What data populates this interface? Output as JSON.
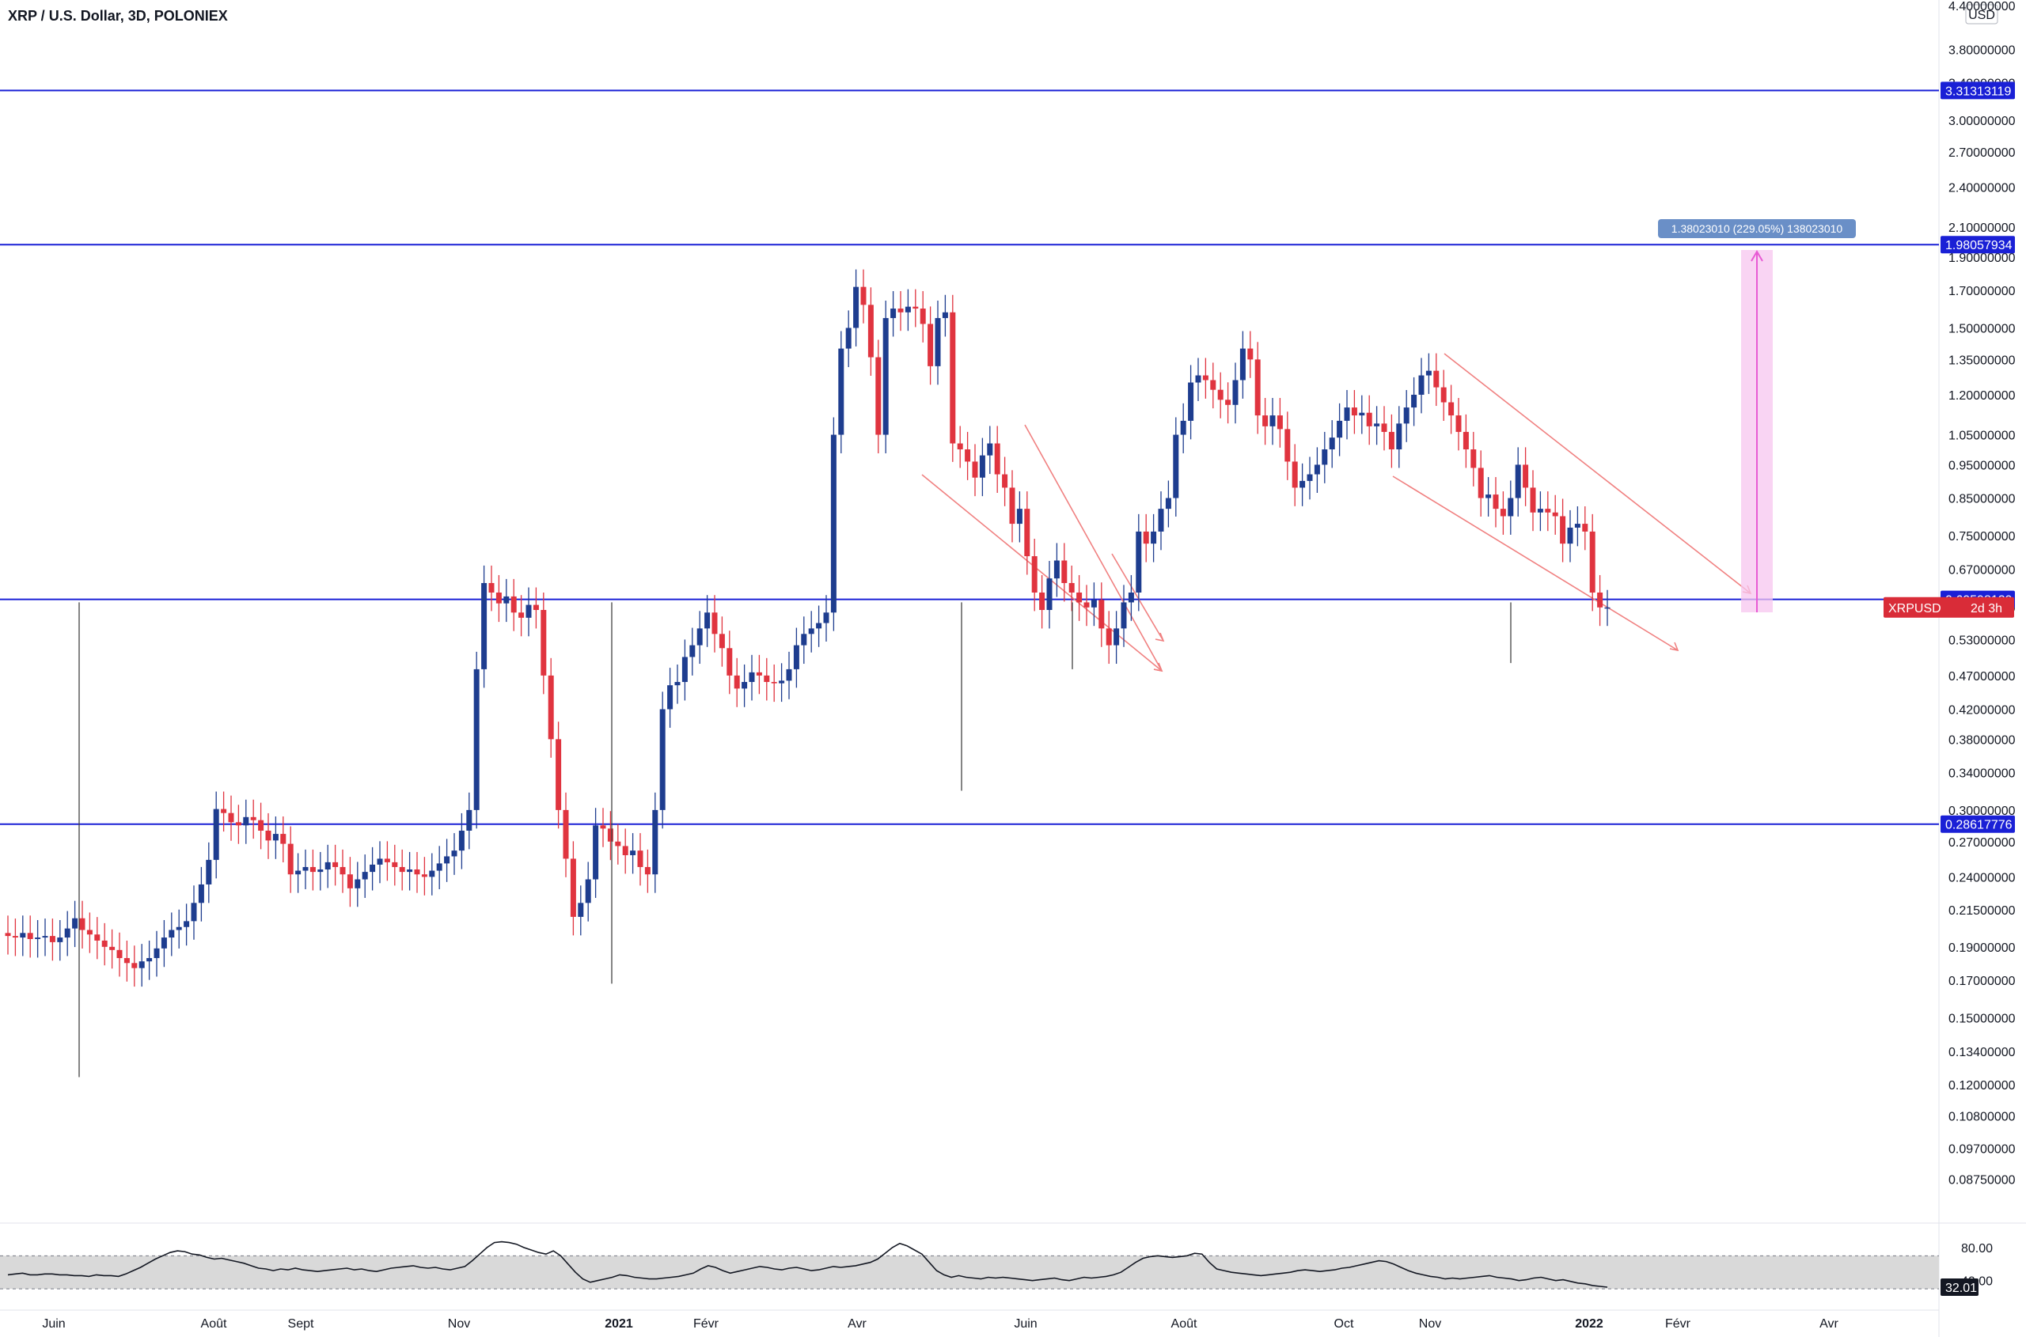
{
  "header": {
    "title": "XRP / U.S. Dollar, 3D, POLONIEX",
    "currency": "USD"
  },
  "colors": {
    "up": "#1e3d8f",
    "down": "#e0343f",
    "hline": "#1a20d6",
    "label_bg": "#1a20d6",
    "price_bg": "#d92c38",
    "trend": "#f08080",
    "measure_fill": "#f7c5ef",
    "measure_stroke": "#e85ad4",
    "measure_label_bg": "#6a8fc7",
    "rsi_band": "#d9d9d9",
    "grid": "#e0e3eb"
  },
  "price_axis": {
    "ticks": [
      "4.40000000",
      "3.80000000",
      "3.40000000",
      "3.00000000",
      "2.70000000",
      "2.40000000",
      "2.10000000",
      "1.90000000",
      "1.70000000",
      "1.50000000",
      "1.35000000",
      "1.20000000",
      "1.05000000",
      "0.95000000",
      "0.85000000",
      "0.75000000",
      "0.67000000",
      "0.59000000",
      "0.53000000",
      "0.47000000",
      "0.42000000",
      "0.38000000",
      "0.34000000",
      "0.30000000",
      "0.27000000",
      "0.24000000",
      "0.21500000",
      "0.19000000",
      "0.17000000",
      "0.15000000",
      "0.13400000",
      "0.12000000",
      "0.10800000",
      "0.09700000",
      "0.08750000"
    ],
    "scale": "log"
  },
  "horizontal_lines": [
    {
      "label": "3.31313119",
      "value": 3.31313119
    },
    {
      "label": "1.98057934",
      "value": 1.98057934
    },
    {
      "label": "0.60598129",
      "value": 0.60598129
    },
    {
      "label": "0.28617776",
      "value": 0.28617776
    }
  ],
  "current_price": {
    "symbol": "XRPUSD",
    "countdown": "2d 3h"
  },
  "measure": {
    "label": "1.38023010 (229.05%) 138023010"
  },
  "rsi": {
    "ticks": [
      "80.00",
      "40.00"
    ],
    "current": "32.01",
    "upper": 70,
    "lower": 30,
    "values": [
      47,
      48,
      49,
      47,
      47,
      48,
      48,
      47,
      47,
      46,
      46,
      45,
      47,
      46,
      46,
      45,
      48,
      52,
      56,
      61,
      66,
      70,
      74,
      76,
      75,
      72,
      71,
      68,
      66,
      67,
      65,
      63,
      61,
      58,
      55,
      54,
      52,
      54,
      53,
      55,
      53,
      52,
      51,
      52,
      53,
      54,
      55,
      53,
      54,
      52,
      51,
      53,
      55,
      56,
      57,
      58,
      56,
      55,
      56,
      54,
      53,
      55,
      57,
      64,
      72,
      80,
      86,
      87,
      86,
      84,
      80,
      77,
      74,
      72,
      76,
      70,
      60,
      50,
      42,
      38,
      40,
      42,
      44,
      47,
      46,
      44,
      43,
      42,
      42,
      43,
      44,
      45,
      47,
      49,
      54,
      58,
      56,
      52,
      49,
      51,
      53,
      55,
      57,
      56,
      54,
      53,
      55,
      56,
      54,
      52,
      53,
      55,
      57,
      56,
      57,
      58,
      60,
      62,
      66,
      73,
      80,
      85,
      82,
      77,
      72,
      62,
      52,
      47,
      44,
      46,
      44,
      43,
      42,
      44,
      43,
      44,
      43,
      42,
      41,
      40,
      41,
      42,
      43,
      41,
      40,
      42,
      44,
      43,
      44,
      45,
      47,
      50,
      56,
      62,
      67,
      69,
      70,
      69,
      68,
      69,
      70,
      73,
      72,
      62,
      54,
      52,
      50,
      49,
      48,
      47,
      46,
      47,
      48,
      49,
      50,
      52,
      53,
      52,
      51,
      52,
      53,
      55,
      56,
      58,
      60,
      62,
      64,
      63,
      60,
      56,
      52,
      49,
      47,
      45,
      44,
      42,
      43,
      42,
      43,
      44,
      45,
      46,
      44,
      43,
      42,
      40,
      41,
      43,
      44,
      42,
      40,
      41,
      39,
      37,
      36,
      34,
      33,
      32
    ]
  },
  "time_axis": {
    "labels": [
      {
        "text": "Juin",
        "bold": false
      },
      {
        "text": "Août",
        "bold": false
      },
      {
        "text": "Sept",
        "bold": false
      },
      {
        "text": "Nov",
        "bold": false
      },
      {
        "text": "2021",
        "bold": true
      },
      {
        "text": "Févr",
        "bold": false
      },
      {
        "text": "Avr",
        "bold": false
      },
      {
        "text": "Juin",
        "bold": false
      },
      {
        "text": "Août",
        "bold": false
      },
      {
        "text": "Oct",
        "bold": false
      },
      {
        "text": "Nov",
        "bold": false
      },
      {
        "text": "2022",
        "bold": true
      },
      {
        "text": "Févr",
        "bold": false
      },
      {
        "text": "Avr",
        "bold": false
      }
    ]
  },
  "chart_data": {
    "type": "candlestick",
    "title": "XRP / U.S. Dollar, 3D, POLONIEX",
    "scale": "log",
    "ylim": [
      0.082,
      4.4
    ],
    "closes": [
      0.197,
      0.196,
      0.199,
      0.195,
      0.196,
      0.197,
      0.193,
      0.196,
      0.202,
      0.209,
      0.201,
      0.198,
      0.194,
      0.19,
      0.188,
      0.183,
      0.18,
      0.177,
      0.181,
      0.183,
      0.189,
      0.196,
      0.201,
      0.203,
      0.207,
      0.22,
      0.234,
      0.254,
      0.301,
      0.297,
      0.288,
      0.285,
      0.293,
      0.29,
      0.28,
      0.271,
      0.277,
      0.268,
      0.242,
      0.245,
      0.248,
      0.244,
      0.246,
      0.252,
      0.248,
      0.242,
      0.231,
      0.238,
      0.244,
      0.25,
      0.255,
      0.252,
      0.248,
      0.244,
      0.246,
      0.242,
      0.24,
      0.245,
      0.251,
      0.257,
      0.262,
      0.28,
      0.3,
      0.48,
      0.64,
      0.62,
      0.598,
      0.612,
      0.58,
      0.57,
      0.595,
      0.585,
      0.47,
      0.38,
      0.3,
      0.255,
      0.21,
      0.22,
      0.238,
      0.285,
      0.282,
      0.27,
      0.266,
      0.258,
      0.262,
      0.248,
      0.242,
      0.3,
      0.42,
      0.455,
      0.46,
      0.5,
      0.52,
      0.55,
      0.58,
      0.54,
      0.515,
      0.47,
      0.45,
      0.46,
      0.475,
      0.47,
      0.46,
      0.458,
      0.462,
      0.48,
      0.52,
      0.54,
      0.55,
      0.56,
      0.58,
      1.05,
      1.4,
      1.5,
      1.72,
      1.62,
      1.36,
      1.05,
      1.55,
      1.6,
      1.58,
      1.61,
      1.6,
      1.52,
      1.32,
      1.55,
      1.58,
      1.02,
      1.0,
      0.96,
      0.91,
      0.98,
      1.02,
      0.92,
      0.88,
      0.78,
      0.82,
      0.7,
      0.62,
      0.585,
      0.65,
      0.69,
      0.64,
      0.62,
      0.6,
      0.59,
      0.605,
      0.55,
      0.52,
      0.55,
      0.6,
      0.62,
      0.76,
      0.73,
      0.76,
      0.82,
      0.85,
      1.05,
      1.1,
      1.25,
      1.28,
      1.26,
      1.22,
      1.18,
      1.16,
      1.26,
      1.4,
      1.35,
      1.12,
      1.08,
      1.12,
      1.07,
      0.96,
      0.88,
      0.9,
      0.92,
      0.95,
      1.0,
      1.04,
      1.1,
      1.15,
      1.12,
      1.13,
      1.08,
      1.09,
      1.06,
      1.0,
      1.09,
      1.15,
      1.2,
      1.28,
      1.3,
      1.23,
      1.17,
      1.12,
      1.06,
      1.0,
      0.94,
      0.85,
      0.86,
      0.82,
      0.8,
      0.85,
      0.95,
      0.88,
      0.81,
      0.82,
      0.81,
      0.8,
      0.73,
      0.77,
      0.78,
      0.76,
      0.62,
      0.59,
      0.59
    ]
  }
}
